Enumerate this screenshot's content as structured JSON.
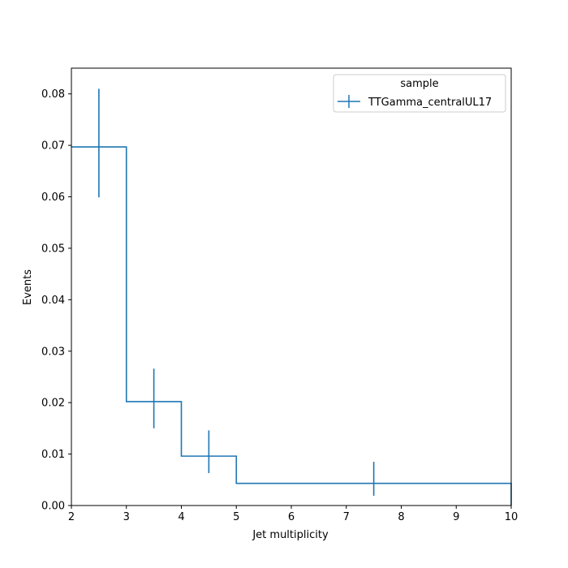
{
  "chart_data": {
    "type": "histogram-step",
    "xlabel": "Jet multiplicity",
    "ylabel": "Events",
    "xlim": [
      2,
      10
    ],
    "ylim": [
      0,
      0.085
    ],
    "x_ticks": [
      "2",
      "3",
      "4",
      "5",
      "6",
      "7",
      "8",
      "9",
      "10"
    ],
    "y_ticks": [
      "0.00",
      "0.01",
      "0.02",
      "0.03",
      "0.04",
      "0.05",
      "0.06",
      "0.07",
      "0.08"
    ],
    "legend": {
      "title": "sample",
      "placement": "top-right"
    },
    "color": "#1f77b4",
    "series": [
      {
        "name": "TTGamma_centralUL17",
        "bins": [
          {
            "low": 2,
            "high": 3,
            "value": 0.0697,
            "err_low": 0.0599,
            "err_high": 0.081
          },
          {
            "low": 3,
            "high": 4,
            "value": 0.0202,
            "err_low": 0.015,
            "err_high": 0.0266
          },
          {
            "low": 4,
            "high": 5,
            "value": 0.0096,
            "err_low": 0.0063,
            "err_high": 0.0146
          },
          {
            "low": 5,
            "high": 10,
            "value": 0.0043,
            "err_low": 0.0019,
            "err_high": 0.0085
          }
        ]
      }
    ]
  }
}
